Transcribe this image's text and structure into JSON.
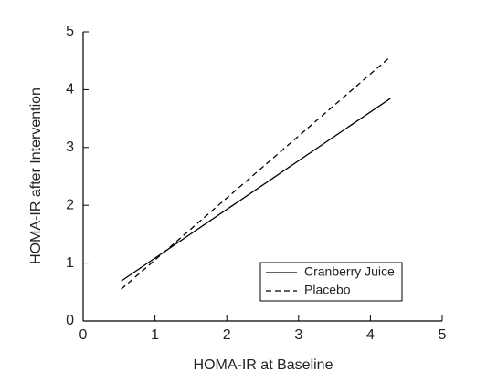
{
  "chart_data": {
    "type": "line",
    "xlabel": "HOMA-IR at Baseline",
    "ylabel": "HOMA-IR after Intervention",
    "x": [
      0.53,
      4.28
    ],
    "series": [
      {
        "name": "Cranberry Juice",
        "color": "#000000",
        "dash": "solid",
        "values": [
          0.69,
          3.85
        ]
      },
      {
        "name": "Placebo",
        "color": "#000000",
        "dash": "dashed",
        "values": [
          0.55,
          4.57
        ]
      }
    ],
    "xlim": [
      0,
      5
    ],
    "xticks": [
      0,
      1,
      2,
      3,
      4,
      5
    ],
    "ylim": [
      0,
      5
    ],
    "yticks": [
      0,
      1,
      2,
      3,
      4,
      5
    ],
    "legend": "lower right",
    "grid": false
  }
}
